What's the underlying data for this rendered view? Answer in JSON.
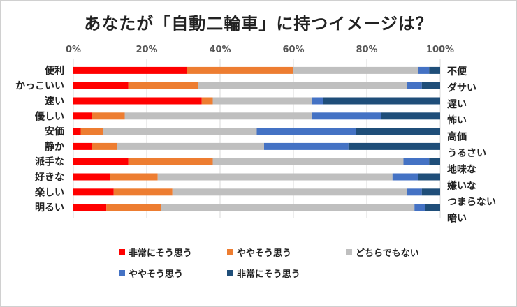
{
  "chart_data": {
    "type": "bar",
    "orientation": "horizontal",
    "stacked": "percent",
    "title": "あなたが「自動二輪車」に持つイメージは？",
    "xlabel": "",
    "ylabel": "",
    "xlim": [
      0,
      100
    ],
    "x_ticks": [
      "0%",
      "20%",
      "40%",
      "60%",
      "80%",
      "100%"
    ],
    "grid": true,
    "legend_position": "bottom",
    "categories": [
      "便利",
      "かっこいい",
      "速い",
      "優しい",
      "安価",
      "静か",
      "派手な",
      "好きな",
      "楽しい",
      "明るい"
    ],
    "opposite_categories": [
      "不便",
      "ダサい",
      "遅い",
      "怖い",
      "高価",
      "うるさい",
      "地味な",
      "嫌いな",
      "つまらない",
      "暗い"
    ],
    "series": [
      {
        "name": "非常にそう思う",
        "color": "#ff0000",
        "values": [
          31,
          15,
          35,
          5,
          2,
          5,
          15,
          10,
          11,
          9
        ]
      },
      {
        "name": "ややそう思う",
        "color": "#ed7d31",
        "values": [
          29,
          19,
          3,
          9,
          6,
          7,
          23,
          13,
          16,
          15
        ]
      },
      {
        "name": "どちらでもない",
        "color": "#bfbfbf",
        "values": [
          34,
          57,
          27,
          51,
          42,
          40,
          52,
          64,
          64,
          69
        ]
      },
      {
        "name": "ややそう思う",
        "color": "#4472c4",
        "values": [
          3,
          4,
          3,
          19,
          27,
          23,
          7,
          7,
          4,
          3
        ]
      },
      {
        "name": "非常にそう思う",
        "color": "#1f4e79",
        "values": [
          3,
          5,
          32,
          16,
          23,
          25,
          3,
          6,
          5,
          4
        ]
      }
    ]
  }
}
